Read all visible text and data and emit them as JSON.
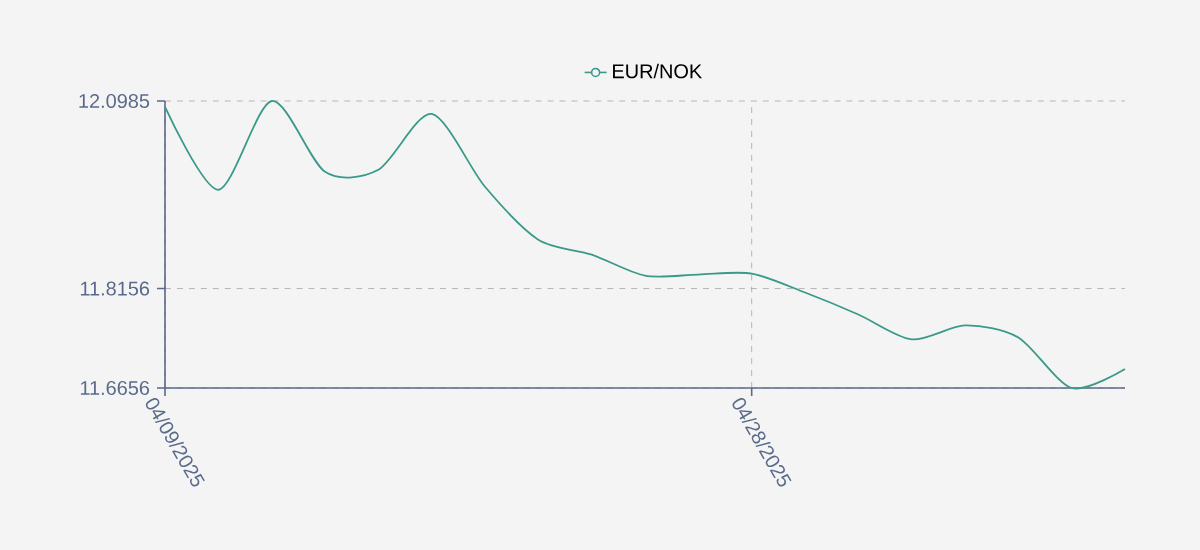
{
  "chart_data": {
    "type": "line",
    "categories": [
      "04/09/2025",
      null,
      null,
      null,
      null,
      null,
      null,
      null,
      null,
      null,
      null,
      "04/28/2025",
      null,
      null,
      null,
      null,
      null,
      null,
      null
    ],
    "series": [
      {
        "name": "EUR/NOK",
        "color": "#3a9a8a",
        "values": [
          12.0895,
          11.9646,
          12.0985,
          11.9917,
          11.9947,
          12.0789,
          11.9691,
          11.8893,
          11.8667,
          11.8351,
          11.8367,
          11.8382,
          11.8096,
          11.7765,
          11.7389,
          11.76,
          11.7419,
          11.6656,
          11.6942
        ]
      }
    ],
    "ylim": [
      11.6656,
      12.0985
    ],
    "yticks": [
      11.6656,
      11.8156,
      12.0985
    ],
    "grid": true,
    "legend": "top"
  }
}
